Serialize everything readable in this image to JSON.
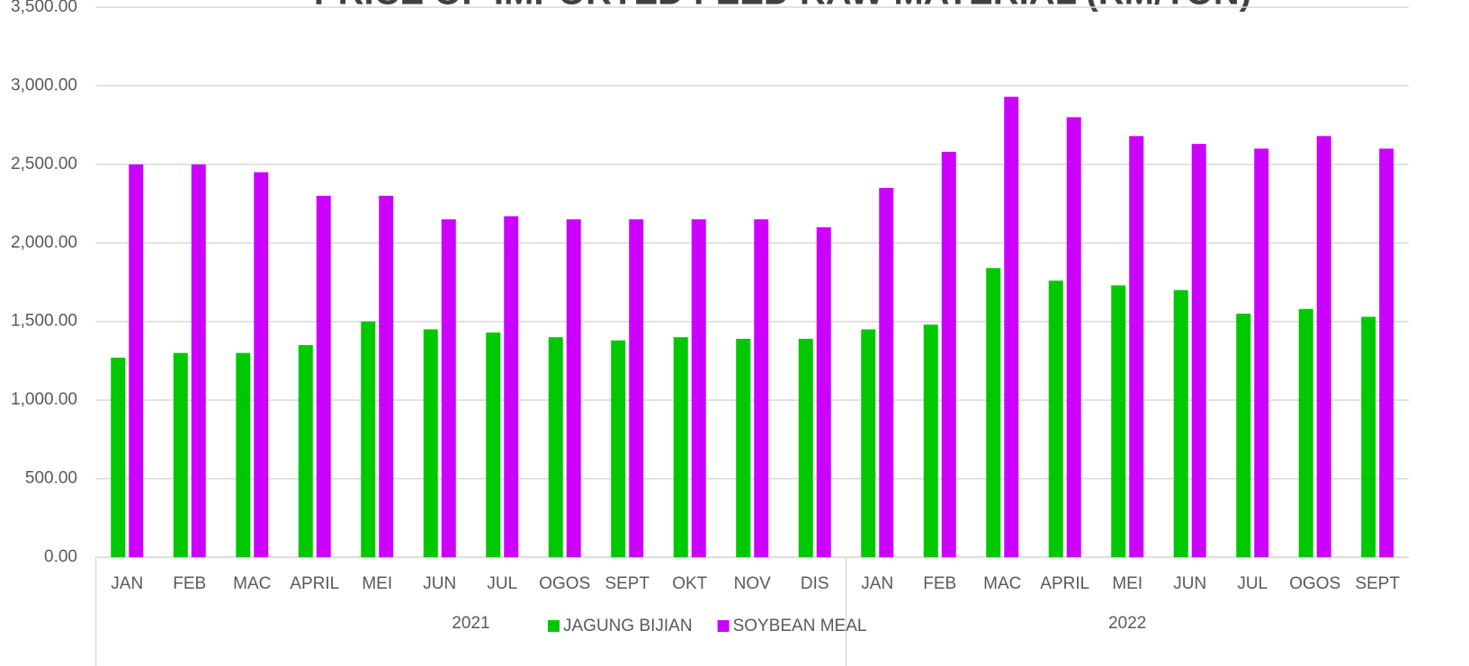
{
  "chart_data": {
    "type": "bar",
    "title": "PRICE OF IMPORTED FEED RAW MATERIAL (RM/TON)",
    "categories": [
      "JAN",
      "FEB",
      "MAC",
      "APRIL",
      "MEI",
      "JUN",
      "JUL",
      "OGOS",
      "SEPT",
      "OKT",
      "NOV",
      "DIS",
      "JAN",
      "FEB",
      "MAC",
      "APRIL",
      "MEI",
      "JUN",
      "JUL",
      "OGOS",
      "SEPT"
    ],
    "x_groups": [
      {
        "label": "2021",
        "count": 12
      },
      {
        "label": "2022",
        "count": 9
      }
    ],
    "series": [
      {
        "name": "JAGUNG BIJIAN",
        "color": "#00c800",
        "values": [
          1270,
          1300,
          1300,
          1350,
          1500,
          1450,
          1430,
          1400,
          1380,
          1400,
          1390,
          1390,
          1450,
          1480,
          1840,
          1760,
          1730,
          1700,
          1550,
          1580,
          1530
        ]
      },
      {
        "name": "SOYBEAN MEAL",
        "color": "#cc00ff",
        "values": [
          2500,
          2500,
          2450,
          2300,
          2300,
          2150,
          2170,
          2150,
          2150,
          2150,
          2150,
          2100,
          2350,
          2580,
          2930,
          2800,
          2680,
          2630,
          2600,
          2680,
          2600
        ]
      }
    ],
    "ylim": [
      0,
      3500
    ],
    "yticks": [
      {
        "value": 0,
        "label": "0.00"
      },
      {
        "value": 500,
        "label": "500.00"
      },
      {
        "value": 1000,
        "label": "1,000.00"
      },
      {
        "value": 1500,
        "label": "1,500.00"
      },
      {
        "value": 2000,
        "label": "2,000.00"
      },
      {
        "value": 2500,
        "label": "2,500.00"
      },
      {
        "value": 3000,
        "label": "3,000.00"
      },
      {
        "value": 3500,
        "label": "3,500.00"
      }
    ],
    "grid": true,
    "legend": "bottom"
  }
}
